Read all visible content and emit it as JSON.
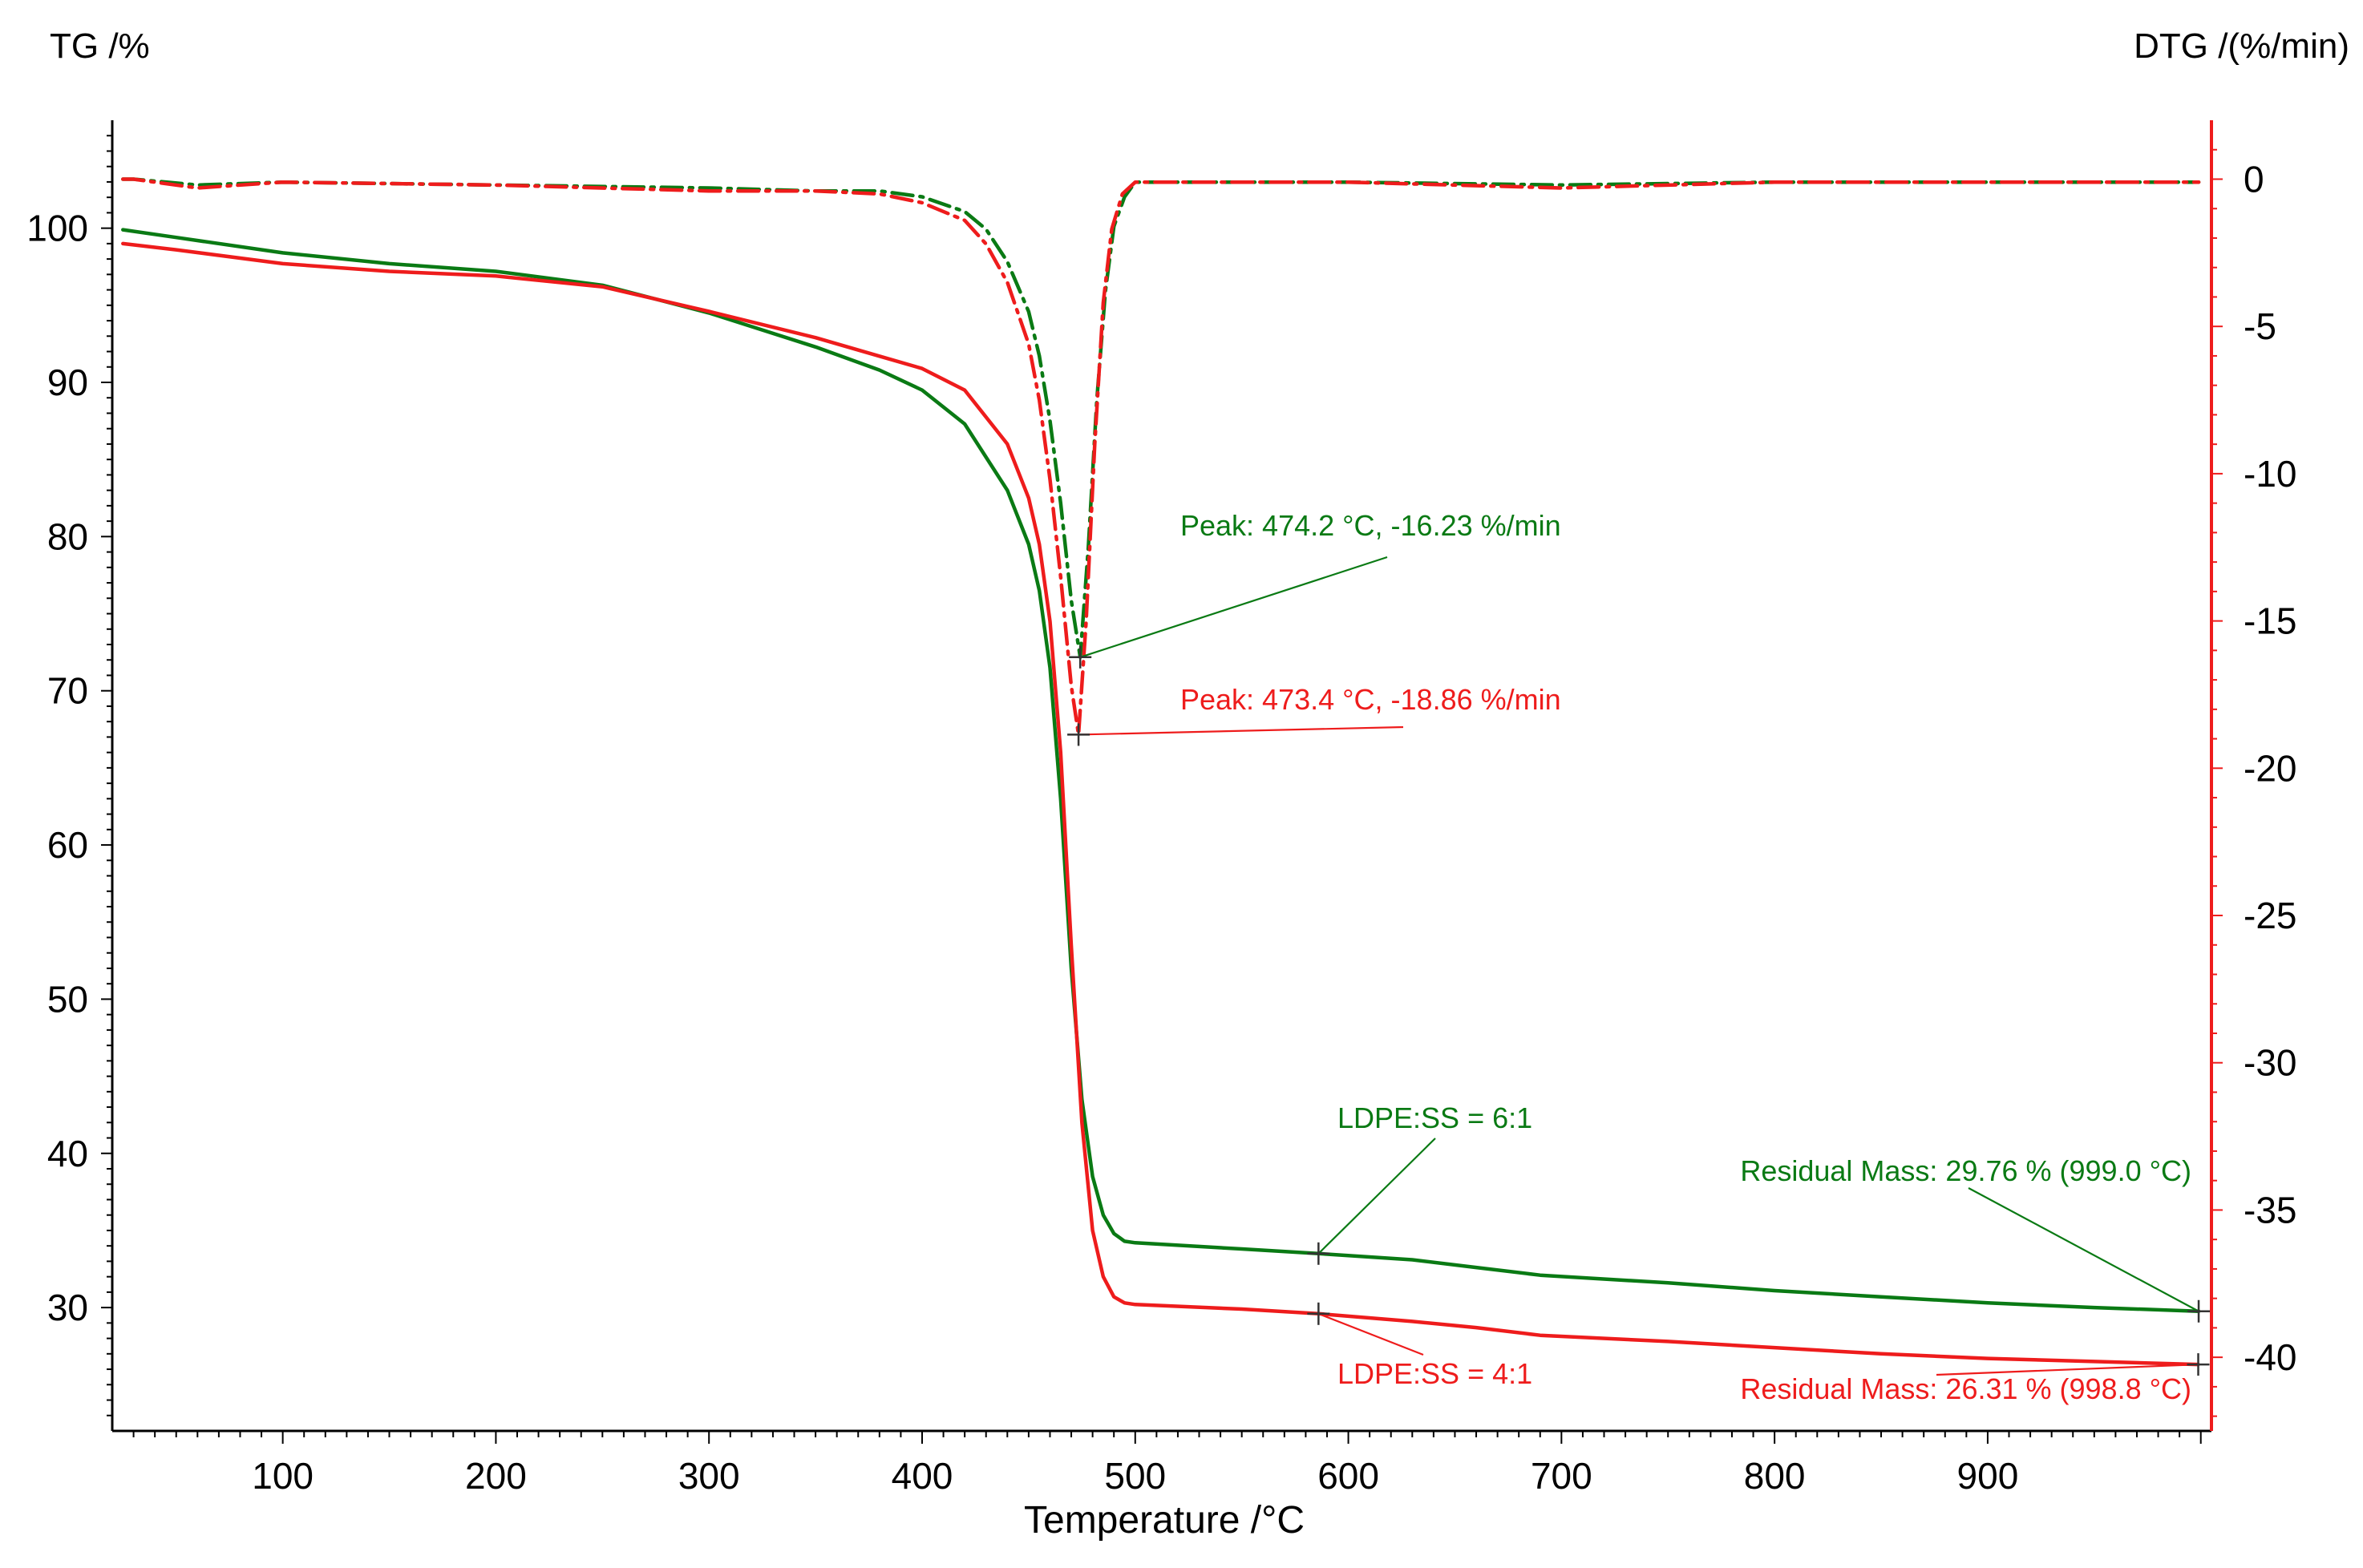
{
  "colors": {
    "green": "#0a7a14",
    "red": "#ee1c1c",
    "axis": "#000000",
    "background": "#ffffff"
  },
  "chart_data": {
    "type": "line",
    "title": "",
    "xlabel": "Temperature /°C",
    "ylabel_left": "TG /%",
    "ylabel_right": "DTG /(%/min)",
    "xlim": [
      20,
      1005
    ],
    "ylim_left": [
      22,
      107
    ],
    "ylim_right": [
      -42.5,
      2
    ],
    "x_ticks": [
      100,
      200,
      300,
      400,
      500,
      600,
      700,
      800,
      900
    ],
    "y_left_ticks": [
      30,
      40,
      50,
      60,
      70,
      80,
      90,
      100
    ],
    "y_right_ticks": [
      0,
      -5,
      -10,
      -15,
      -20,
      -25,
      -30,
      -35,
      -40
    ],
    "grid": false,
    "legend": "none",
    "series": [
      {
        "name": "TG LDPE:SS = 6:1",
        "axis": "left",
        "color": "green",
        "dash": "solid",
        "x": [
          25,
          50,
          100,
          150,
          200,
          250,
          300,
          350,
          380,
          400,
          420,
          440,
          450,
          455,
          460,
          465,
          470,
          475,
          480,
          485,
          490,
          495,
          500,
          550,
          586,
          630,
          660,
          690,
          750,
          800,
          850,
          900,
          950,
          999
        ],
        "y": [
          99.9,
          99.4,
          98.4,
          97.7,
          97.2,
          96.3,
          94.5,
          92.3,
          90.8,
          89.5,
          87.3,
          83.0,
          79.5,
          76.5,
          71.5,
          63.0,
          52.0,
          43.5,
          38.5,
          36.0,
          34.8,
          34.3,
          34.2,
          33.8,
          33.5,
          33.1,
          32.6,
          32.1,
          31.6,
          31.1,
          30.7,
          30.3,
          30.0,
          29.76
        ]
      },
      {
        "name": "TG LDPE:SS = 4:1",
        "axis": "left",
        "color": "red",
        "dash": "solid",
        "x": [
          25,
          50,
          100,
          150,
          200,
          250,
          300,
          350,
          380,
          400,
          420,
          440,
          450,
          455,
          460,
          465,
          470,
          475,
          480,
          485,
          490,
          495,
          500,
          550,
          586,
          630,
          660,
          690,
          750,
          800,
          850,
          900,
          950,
          998.8
        ],
        "y": [
          99.0,
          98.6,
          97.7,
          97.2,
          96.9,
          96.2,
          94.6,
          92.9,
          91.7,
          90.9,
          89.5,
          86.0,
          82.5,
          79.5,
          74.5,
          66.0,
          53.5,
          42.0,
          35.0,
          32.0,
          30.7,
          30.3,
          30.2,
          29.9,
          29.6,
          29.1,
          28.7,
          28.2,
          27.8,
          27.4,
          27.0,
          26.7,
          26.5,
          26.31
        ]
      },
      {
        "name": "DTG LDPE:SS = 6:1",
        "axis": "right",
        "color": "green",
        "dash": "dash-dot",
        "x": [
          25,
          30,
          60,
          100,
          200,
          300,
          350,
          380,
          400,
          420,
          430,
          440,
          450,
          455,
          460,
          465,
          470,
          474.2,
          478,
          482,
          486,
          490,
          495,
          500,
          600,
          700,
          800,
          900,
          999
        ],
        "y": [
          0,
          0,
          -0.2,
          -0.1,
          -0.2,
          -0.3,
          -0.4,
          -0.4,
          -0.6,
          -1.1,
          -1.7,
          -2.8,
          -4.5,
          -6.0,
          -8.2,
          -11.0,
          -14.3,
          -16.23,
          -12.5,
          -7.5,
          -3.8,
          -1.6,
          -0.6,
          -0.1,
          -0.1,
          -0.2,
          -0.1,
          -0.1,
          -0.1
        ]
      },
      {
        "name": "DTG LDPE:SS = 4:1",
        "axis": "right",
        "color": "red",
        "dash": "dash-dot",
        "x": [
          25,
          30,
          60,
          100,
          200,
          300,
          350,
          380,
          400,
          420,
          430,
          440,
          450,
          455,
          460,
          465,
          470,
          473.4,
          477,
          481,
          485,
          489,
          494,
          500,
          600,
          700,
          800,
          900,
          999
        ],
        "y": [
          0,
          0,
          -0.3,
          -0.1,
          -0.2,
          -0.4,
          -0.4,
          -0.5,
          -0.8,
          -1.4,
          -2.2,
          -3.5,
          -5.6,
          -7.5,
          -10.2,
          -13.5,
          -17.2,
          -18.86,
          -15.0,
          -9.0,
          -4.2,
          -1.7,
          -0.5,
          -0.1,
          -0.1,
          -0.3,
          -0.1,
          -0.1,
          -0.1
        ]
      }
    ],
    "annotations": [
      {
        "id": "peak-green",
        "text": "Peak: 474.2 °C, -16.23 %/min",
        "color": "green",
        "marker_axis": "right",
        "marker_x": 474.2,
        "marker_y": -16.23
      },
      {
        "id": "peak-red",
        "text": "Peak: 473.4 °C, -18.86 %/min",
        "color": "red",
        "marker_axis": "right",
        "marker_x": 473.4,
        "marker_y": -18.86
      },
      {
        "id": "label-green",
        "text": "LDPE:SS = 6:1",
        "color": "green",
        "marker_axis": "left",
        "marker_x": 586,
        "marker_y": 33.5
      },
      {
        "id": "label-red",
        "text": "LDPE:SS = 4:1",
        "color": "red",
        "marker_axis": "left",
        "marker_x": 586,
        "marker_y": 29.6
      },
      {
        "id": "residual-green",
        "text": "Residual Mass: 29.76 % (999.0 °C)",
        "color": "green",
        "marker_axis": "left",
        "marker_x": 999.0,
        "marker_y": 29.76
      },
      {
        "id": "residual-red",
        "text": "Residual Mass: 26.31 % (998.8 °C)",
        "color": "red",
        "marker_axis": "left",
        "marker_x": 998.8,
        "marker_y": 26.31
      }
    ]
  }
}
